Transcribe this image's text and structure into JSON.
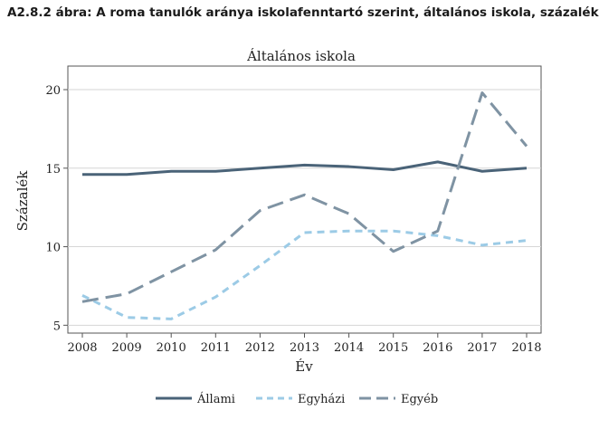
{
  "figure_title": "A2.8.2 ábra: A roma tanulók aránya iskolafenntartó szerint, általános iskola, százalék",
  "chart_data": {
    "type": "line",
    "title": "Általános iskola",
    "xlabel": "Év",
    "ylabel": "Százalék",
    "x": [
      2008,
      2009,
      2010,
      2011,
      2012,
      2013,
      2014,
      2015,
      2016,
      2017,
      2018
    ],
    "ylim": [
      4.5,
      21.5
    ],
    "yticks": [
      5,
      10,
      15,
      20
    ],
    "grid": true,
    "legend_position": "bottom",
    "series": [
      {
        "name": "Állami",
        "color": "#4a6378",
        "style": "solid",
        "values": [
          14.6,
          14.6,
          14.8,
          14.8,
          15.0,
          15.2,
          15.1,
          14.9,
          15.4,
          14.8,
          15.0
        ]
      },
      {
        "name": "Egyházi",
        "color": "#9ccbe6",
        "style": "short-dash",
        "values": [
          6.9,
          5.5,
          5.4,
          6.8,
          8.8,
          10.9,
          11.0,
          11.0,
          10.7,
          10.1,
          10.4
        ]
      },
      {
        "name": "Egyéb",
        "color": "#7f93a3",
        "style": "long-dash",
        "values": [
          6.5,
          7.0,
          8.4,
          9.8,
          12.3,
          13.3,
          12.1,
          9.7,
          11.0,
          19.8,
          16.4
        ]
      }
    ]
  }
}
